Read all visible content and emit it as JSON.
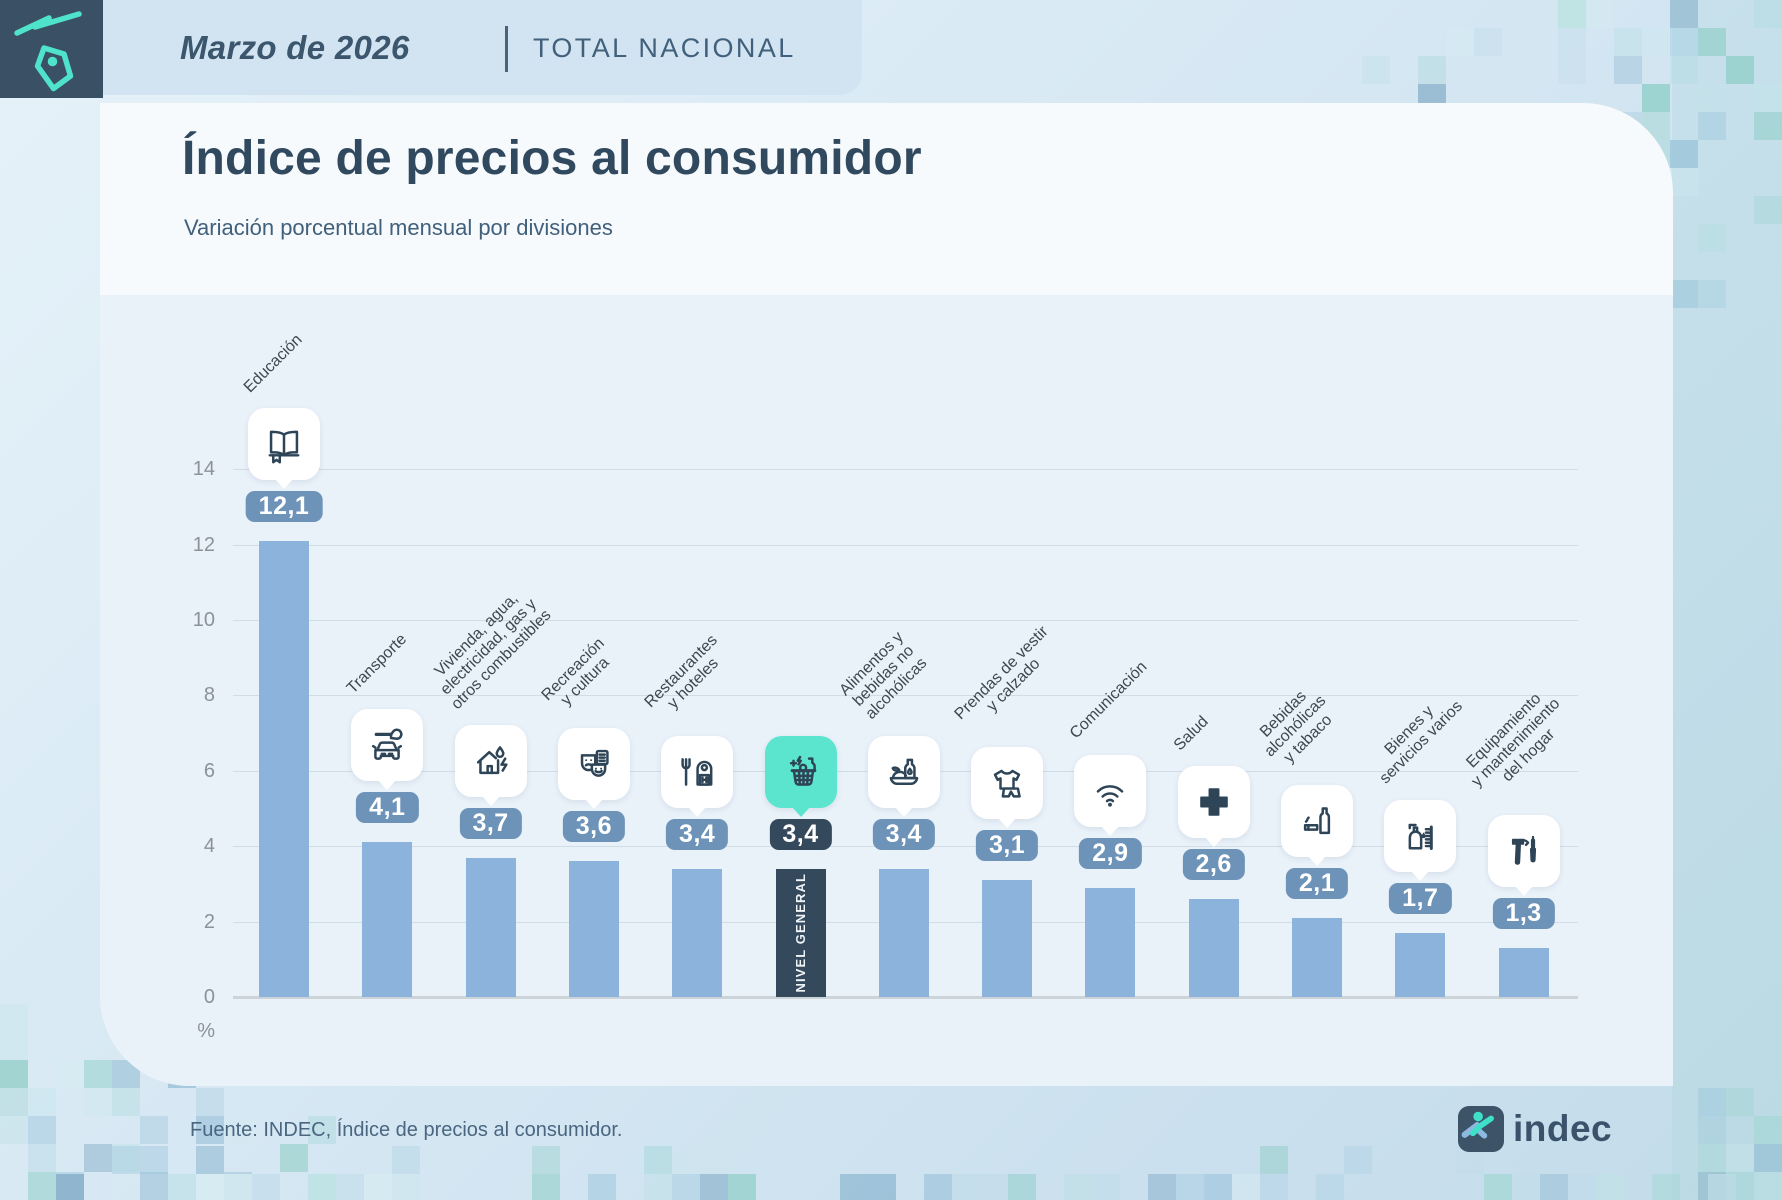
{
  "header": {
    "period": "Marzo de 2026",
    "scope": "TOTAL NACIONAL"
  },
  "title": "Índice de precios al consumidor",
  "subtitle": "Variación porcentual mensual por divisiones",
  "footer": {
    "source": "Fuente: INDEC, Índice de precios al consumidor.",
    "brand": "indec"
  },
  "chart_data": {
    "type": "bar",
    "title": "Índice de precios al consumidor",
    "subtitle": "Variación porcentual mensual por divisiones",
    "unit": "%",
    "ylim": [
      0,
      14
    ],
    "yticks": [
      0,
      2,
      4,
      6,
      8,
      10,
      12,
      14
    ],
    "grid": true,
    "legend": null,
    "bars": [
      {
        "category": "Educación",
        "label_lines": [
          "Educación"
        ],
        "value": 12.1,
        "display": "12,1",
        "icon": "book-icon",
        "highlight": false
      },
      {
        "category": "Transporte",
        "label_lines": [
          "Transporte"
        ],
        "value": 4.1,
        "display": "4,1",
        "icon": "car-repair-icon",
        "highlight": false
      },
      {
        "category": "Vivienda, agua, electricidad, gas y otros combustibles",
        "label_lines": [
          "Vivienda, agua,",
          "electricidad, gas y",
          "otros combustibles"
        ],
        "value": 3.7,
        "display": "3,7",
        "icon": "house-utilities-icon",
        "highlight": false
      },
      {
        "category": "Recreación y cultura",
        "label_lines": [
          "Recreación",
          "y cultura"
        ],
        "value": 3.6,
        "display": "3,6",
        "icon": "theater-masks-icon",
        "highlight": false
      },
      {
        "category": "Restaurantes y hoteles",
        "label_lines": [
          "Restaurantes",
          "y hoteles"
        ],
        "value": 3.4,
        "display": "3,4",
        "icon": "restaurant-hotel-icon",
        "highlight": false
      },
      {
        "category": "Nivel general",
        "label_lines": [],
        "bar_label": "NIVEL GENERAL",
        "value": 3.4,
        "display": "3,4",
        "icon": "shopping-basket-icon",
        "highlight": true
      },
      {
        "category": "Alimentos y bebidas no alcohólicas",
        "label_lines": [
          "Alimentos y",
          "bebidas no",
          "alcohólicas"
        ],
        "value": 3.4,
        "display": "3,4",
        "icon": "food-drink-icon",
        "highlight": false
      },
      {
        "category": "Prendas de vestir y calzado",
        "label_lines": [
          "Prendas de vestir",
          "y calzado"
        ],
        "value": 3.1,
        "display": "3,1",
        "icon": "clothing-icon",
        "highlight": false
      },
      {
        "category": "Comunicación",
        "label_lines": [
          "Comunicación"
        ],
        "value": 2.9,
        "display": "2,9",
        "icon": "wifi-icon",
        "highlight": false
      },
      {
        "category": "Salud",
        "label_lines": [
          "Salud"
        ],
        "value": 2.6,
        "display": "2,6",
        "icon": "medical-cross-icon",
        "highlight": false
      },
      {
        "category": "Bebidas alcohólicas y tabaco",
        "label_lines": [
          "Bebidas",
          "alcohólicas",
          "y tabaco"
        ],
        "value": 2.1,
        "display": "2,1",
        "icon": "alcohol-tobacco-icon",
        "highlight": false
      },
      {
        "category": "Bienes y servicios varios",
        "label_lines": [
          "Bienes y",
          "servicios varios"
        ],
        "value": 1.7,
        "display": "1,7",
        "icon": "toiletries-icon",
        "highlight": false
      },
      {
        "category": "Equipamiento y mantenimiento del hogar",
        "label_lines": [
          "Equipamiento",
          "y mantenimiento",
          "del hogar"
        ],
        "value": 1.3,
        "display": "1,3",
        "icon": "tools-icon",
        "highlight": false
      }
    ],
    "colors": {
      "bar": "#8cb3dc",
      "highlight_bar": "#35495c",
      "badge": "#6e93b8",
      "highlight_badge": "#35495c",
      "bubble": "#ffffff",
      "highlight_bubble": "#5be5cf",
      "icon": "#2e4457",
      "accent_teal": "#4fe3cb"
    }
  }
}
